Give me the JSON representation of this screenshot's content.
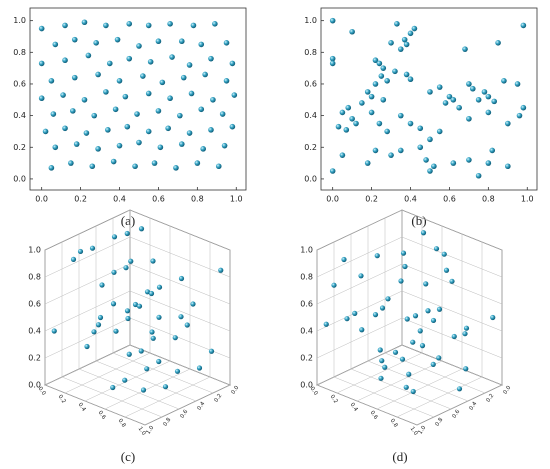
{
  "chart_data": [
    {
      "type": "scatter",
      "label": "(a)",
      "color": "#2a9fbf",
      "x": [
        0.0,
        0.12,
        0.22,
        0.33,
        0.45,
        0.55,
        0.66,
        0.78,
        0.89,
        0.07,
        0.17,
        0.28,
        0.39,
        0.5,
        0.6,
        0.72,
        0.82,
        0.95,
        0.0,
        0.12,
        0.24,
        0.35,
        0.45,
        0.56,
        0.67,
        0.76,
        0.87,
        0.98,
        0.05,
        0.17,
        0.29,
        0.4,
        0.52,
        0.62,
        0.73,
        0.84,
        0.95,
        0.0,
        0.11,
        0.22,
        0.33,
        0.43,
        0.55,
        0.66,
        0.77,
        0.88,
        0.99,
        0.06,
        0.16,
        0.27,
        0.38,
        0.49,
        0.6,
        0.71,
        0.82,
        0.93,
        0.02,
        0.12,
        0.23,
        0.34,
        0.44,
        0.55,
        0.65,
        0.76,
        0.87,
        0.98,
        0.07,
        0.18,
        0.29,
        0.4,
        0.5,
        0.61,
        0.72,
        0.83,
        0.94,
        0.05,
        0.15,
        0.26,
        0.37,
        0.48,
        0.58,
        0.69,
        0.8,
        0.91
      ],
      "y": [
        0.95,
        0.97,
        0.99,
        0.97,
        0.98,
        0.97,
        0.98,
        0.97,
        0.98,
        0.85,
        0.88,
        0.86,
        0.88,
        0.84,
        0.87,
        0.87,
        0.85,
        0.86,
        0.73,
        0.75,
        0.78,
        0.73,
        0.76,
        0.74,
        0.77,
        0.72,
        0.76,
        0.73,
        0.62,
        0.64,
        0.66,
        0.62,
        0.65,
        0.61,
        0.64,
        0.66,
        0.62,
        0.51,
        0.53,
        0.5,
        0.55,
        0.52,
        0.54,
        0.51,
        0.54,
        0.5,
        0.53,
        0.41,
        0.43,
        0.4,
        0.44,
        0.41,
        0.43,
        0.4,
        0.44,
        0.41,
        0.3,
        0.32,
        0.29,
        0.31,
        0.33,
        0.3,
        0.32,
        0.29,
        0.31,
        0.33,
        0.2,
        0.22,
        0.19,
        0.21,
        0.23,
        0.2,
        0.22,
        0.19,
        0.21,
        0.07,
        0.1,
        0.08,
        0.11,
        0.08,
        0.1,
        0.07,
        0.1,
        0.08
      ],
      "xlim": [
        -0.06,
        1.05
      ],
      "ylim": [
        -0.07,
        1.08
      ],
      "xticks": [
        {
          "value": 0,
          "label": "0.0"
        },
        0.2,
        0.4,
        0.6,
        0.8,
        {
          "value": 1,
          "label": "1.0"
        }
      ],
      "yticks": [
        {
          "value": 0,
          "label": "0.0"
        },
        0.2,
        0.4,
        0.6,
        0.8,
        {
          "value": 1,
          "label": "1.0"
        }
      ]
    },
    {
      "type": "scatter",
      "label": "(b)",
      "color": "#2a9fbf",
      "x": [
        0.0,
        0.1,
        0.0,
        0.0,
        0.33,
        0.37,
        0.4,
        0.38,
        0.35,
        0.42,
        0.3,
        0.22,
        0.24,
        0.26,
        0.28,
        0.22,
        0.25,
        0.32,
        0.38,
        0.4,
        0.18,
        0.2,
        0.26,
        0.15,
        0.08,
        0.05,
        0.1,
        0.03,
        0.07,
        0.12,
        0.2,
        0.24,
        0.28,
        0.35,
        0.4,
        0.45,
        0.5,
        0.55,
        0.6,
        0.58,
        0.62,
        0.65,
        0.7,
        0.72,
        0.75,
        0.68,
        0.78,
        0.8,
        0.83,
        0.88,
        0.85,
        0.98,
        0.95,
        0.98,
        0.96,
        0.9,
        0.8,
        0.7,
        0.55,
        0.5,
        0.48,
        0.5,
        0.52,
        0.45,
        0.35,
        0.3,
        0.22,
        0.18,
        0.0,
        0.05,
        0.7,
        0.8,
        0.82,
        0.75,
        0.9,
        0.62
      ],
      "y": [
        1.0,
        0.93,
        0.76,
        0.73,
        0.98,
        0.88,
        0.92,
        0.85,
        0.82,
        0.95,
        0.86,
        0.75,
        0.73,
        0.7,
        0.62,
        0.6,
        0.65,
        0.68,
        0.66,
        0.63,
        0.55,
        0.52,
        0.5,
        0.48,
        0.45,
        0.42,
        0.38,
        0.33,
        0.31,
        0.35,
        0.42,
        0.35,
        0.3,
        0.4,
        0.35,
        0.32,
        0.55,
        0.58,
        0.52,
        0.48,
        0.5,
        0.45,
        0.6,
        0.57,
        0.5,
        0.82,
        0.55,
        0.52,
        0.49,
        0.62,
        0.86,
        0.97,
        0.6,
        0.45,
        0.4,
        0.35,
        0.42,
        0.38,
        0.3,
        0.25,
        0.12,
        0.05,
        0.08,
        0.2,
        0.18,
        0.15,
        0.18,
        0.1,
        0.05,
        0.15,
        0.12,
        0.1,
        0.18,
        0.02,
        0.08,
        0.1
      ],
      "xlim": [
        -0.06,
        1.05
      ],
      "ylim": [
        -0.07,
        1.08
      ],
      "xticks": [
        {
          "value": 0,
          "label": "0.0"
        },
        0.2,
        0.4,
        0.6,
        0.8,
        {
          "value": 1,
          "label": "1.0"
        }
      ],
      "yticks": [
        {
          "value": 0,
          "label": "0.0"
        },
        0.2,
        0.4,
        0.6,
        0.8,
        {
          "value": 1,
          "label": "1.0"
        }
      ]
    },
    {
      "type": "scatter3d",
      "label": "(c)",
      "color": "#2a9fbf",
      "x": [
        0.1,
        0.15,
        0.3,
        0.5,
        0.7,
        0.9,
        0.2,
        0.4,
        0.6,
        0.8,
        0.1,
        0.3,
        0.5,
        0.7,
        0.9,
        0.2,
        0.4,
        0.6,
        0.8,
        0.1,
        0.3,
        0.5,
        0.7,
        0.9,
        0.15,
        0.35,
        0.55,
        0.75,
        0.95,
        0.2,
        0.4,
        0.6,
        0.8,
        0.1,
        0.3,
        0.5,
        0.7,
        0.9,
        0.25,
        0.45,
        0.65,
        0.85,
        0.05,
        0.95,
        0.05
      ],
      "y": [
        0.2,
        0.1,
        0.1,
        0.05,
        0.1,
        0.2,
        0.4,
        0.3,
        0.35,
        0.4,
        0.6,
        0.55,
        0.6,
        0.65,
        0.6,
        0.8,
        0.85,
        0.8,
        0.9,
        0.3,
        0.35,
        0.4,
        0.3,
        0.45,
        0.7,
        0.75,
        0.7,
        0.75,
        0.8,
        0.15,
        0.2,
        0.15,
        0.25,
        0.9,
        0.95,
        0.9,
        0.95,
        0.9,
        0.5,
        0.55,
        0.5,
        0.55,
        0.05,
        0.05,
        0.95
      ],
      "z": [
        0.95,
        0.9,
        0.92,
        0.88,
        0.93,
        0.96,
        0.8,
        0.78,
        0.82,
        0.8,
        0.7,
        0.68,
        0.72,
        0.7,
        0.75,
        0.6,
        0.58,
        0.62,
        0.6,
        0.5,
        0.48,
        0.52,
        0.5,
        0.55,
        0.4,
        0.38,
        0.42,
        0.4,
        0.45,
        0.3,
        0.28,
        0.32,
        0.3,
        0.25,
        0.2,
        0.22,
        0.18,
        0.2,
        0.1,
        0.12,
        0.08,
        0.1,
        0.65,
        0.4,
        0.85
      ],
      "xlim": [
        0,
        1
      ],
      "ylim": [
        0,
        1
      ],
      "zlim": [
        0,
        1
      ],
      "xticks": [
        {
          "value": 0,
          "label": "0.0"
        },
        0.2,
        0.4,
        0.6,
        0.8,
        {
          "value": 1,
          "label": "1.0"
        }
      ],
      "yticks": [
        {
          "value": 0,
          "label": "0.0"
        },
        0.2,
        0.4,
        0.6,
        0.8,
        {
          "value": 1,
          "label": "1.0"
        }
      ],
      "zticks": [
        {
          "value": 0,
          "label": "0.0"
        },
        0.2,
        0.4,
        0.6,
        0.8,
        {
          "value": 1,
          "label": "1.0"
        }
      ]
    },
    {
      "type": "scatter3d",
      "label": "(d)",
      "color": "#2a9fbf",
      "x": [
        0.1,
        0.8,
        0.3,
        0.6,
        0.9,
        0.2,
        0.5,
        0.7,
        0.4,
        0.05,
        0.95,
        0.35,
        0.65,
        0.15,
        0.85,
        0.55,
        0.25,
        0.75,
        0.45,
        0.0,
        1.0,
        0.3,
        0.6,
        0.1,
        0.9,
        0.4,
        0.7,
        0.2,
        0.8,
        0.5,
        0.15,
        0.65,
        0.35,
        0.95,
        0.05,
        0.55,
        0.85,
        0.25,
        0.75,
        0.45,
        0.6,
        0.3,
        0.9,
        0.1,
        0.7
      ],
      "y": [
        0.3,
        0.1,
        0.7,
        0.5,
        0.9,
        0.2,
        0.8,
        0.4,
        0.6,
        0.95,
        0.05,
        0.35,
        0.15,
        0.65,
        0.55,
        0.25,
        0.85,
        0.75,
        0.45,
        0.5,
        0.3,
        0.9,
        0.1,
        0.4,
        0.7,
        0.2,
        0.6,
        0.8,
        0.0,
        1.0,
        0.55,
        0.35,
        0.05,
        0.85,
        0.15,
        0.65,
        0.25,
        0.45,
        0.95,
        0.75,
        0.3,
        0.6,
        0.5,
        0.1,
        0.8
      ],
      "z": [
        0.95,
        0.9,
        0.85,
        0.8,
        0.75,
        0.7,
        0.65,
        0.6,
        0.55,
        0.5,
        0.45,
        0.4,
        0.35,
        0.3,
        0.25,
        0.2,
        0.15,
        0.1,
        0.05,
        0.62,
        0.58,
        0.48,
        0.72,
        0.33,
        0.42,
        0.52,
        0.28,
        0.38,
        0.68,
        0.12,
        0.88,
        0.18,
        0.78,
        0.22,
        0.08,
        0.46,
        0.56,
        0.66,
        0.36,
        0.26,
        0.02,
        0.98,
        0.64,
        0.74,
        0.44
      ],
      "xlim": [
        0,
        1
      ],
      "ylim": [
        0,
        1
      ],
      "zlim": [
        0,
        1
      ],
      "xticks": [
        {
          "value": 0,
          "label": "0.0"
        },
        0.2,
        0.4,
        0.6,
        0.8,
        {
          "value": 1,
          "label": "1.0"
        }
      ],
      "yticks": [
        {
          "value": 0,
          "label": "0.0"
        },
        0.2,
        0.4,
        0.6,
        0.8,
        {
          "value": 1,
          "label": "1.0"
        }
      ],
      "zticks": [
        {
          "value": 0,
          "label": "0.0"
        },
        0.2,
        0.4,
        0.6,
        0.8,
        {
          "value": 1,
          "label": "1.0"
        }
      ]
    }
  ]
}
